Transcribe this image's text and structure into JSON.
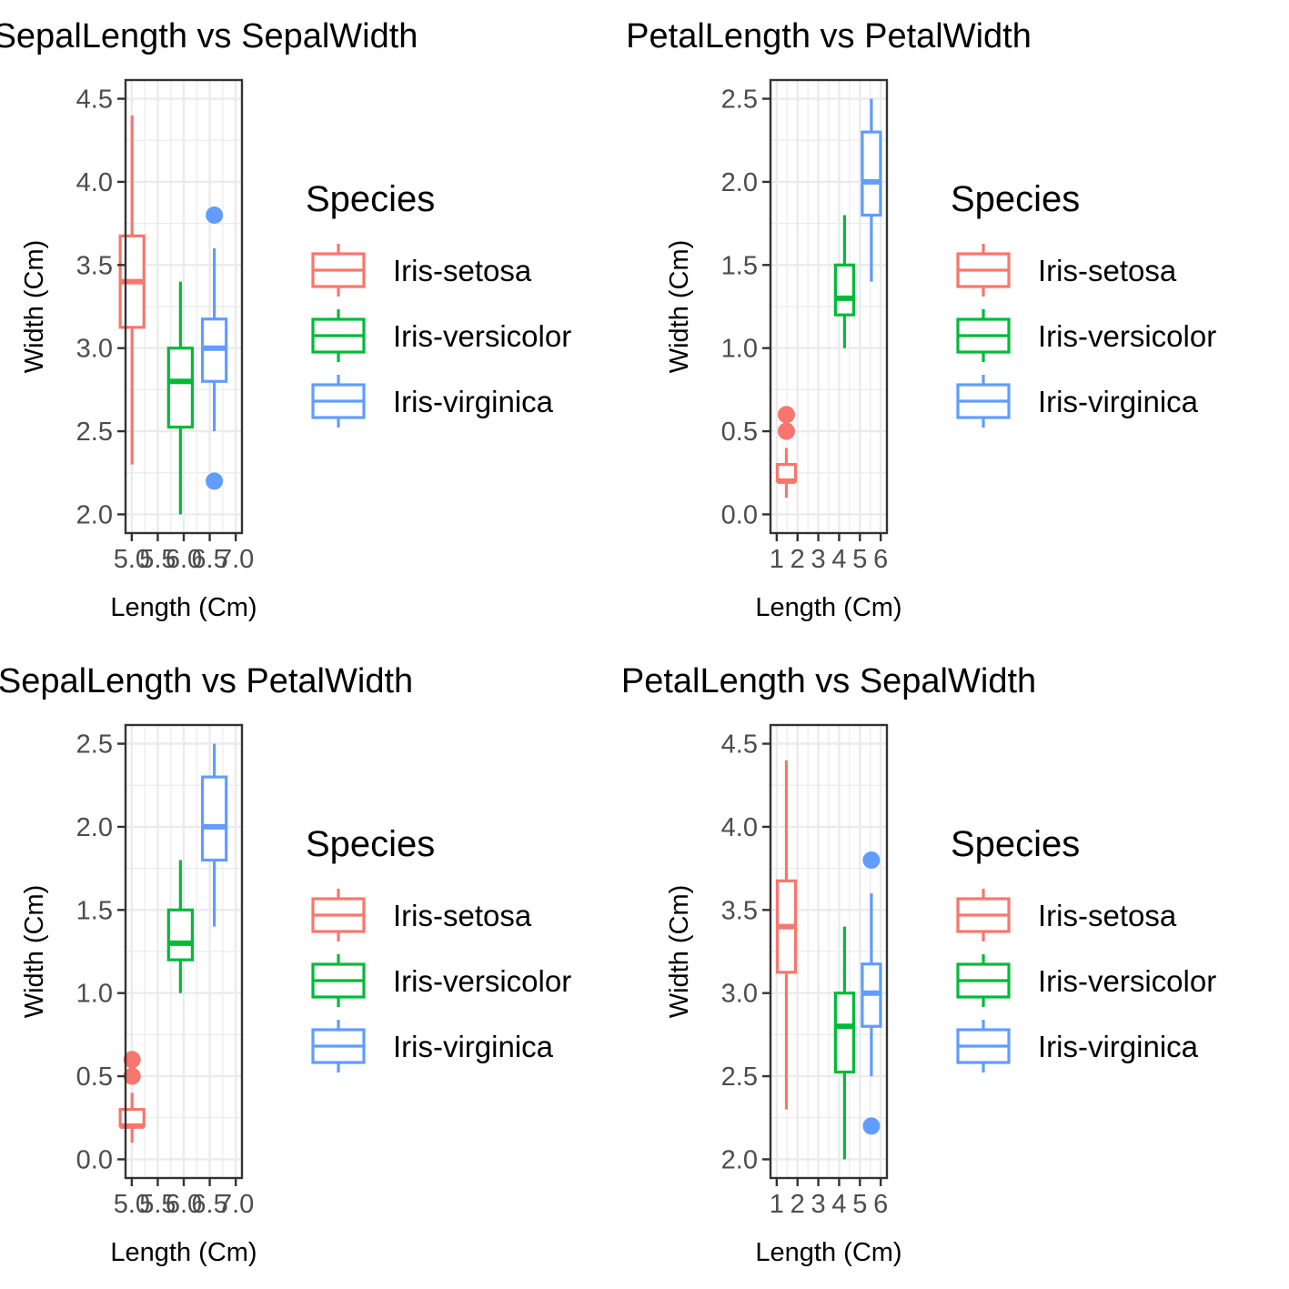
{
  "species": [
    {
      "name": "Iris-setosa",
      "color": "#F8766D"
    },
    {
      "name": "Iris-versicolor",
      "color": "#00BA38"
    },
    {
      "name": "Iris-virginica",
      "color": "#619CFF"
    }
  ],
  "chart_data": [
    {
      "type": "boxplot",
      "title": "SepalLength vs SepalWidth",
      "xlabel": "Length (Cm)",
      "ylabel": "Width (Cm)",
      "xlim": [
        5.0,
        7.0
      ],
      "ylim": [
        2.0,
        4.5
      ],
      "xticks": [
        {
          "v": 5.0,
          "label": "5.0"
        },
        {
          "v": 5.5,
          "label": "5.5"
        },
        {
          "v": 6.0,
          "label": "6.0"
        },
        {
          "v": 6.5,
          "label": "6.5"
        },
        {
          "v": 7.0,
          "label": "7.0"
        }
      ],
      "yticks": [
        {
          "v": 2.0,
          "label": "2.0"
        },
        {
          "v": 2.5,
          "label": "2.5"
        },
        {
          "v": 3.0,
          "label": "3.0"
        },
        {
          "v": 3.5,
          "label": "3.5"
        },
        {
          "v": 4.0,
          "label": "4.0"
        },
        {
          "v": 4.5,
          "label": "4.5"
        }
      ],
      "legend_title": "Species",
      "boxes": [
        {
          "species": "Iris-setosa",
          "center": 5.006,
          "whisker_low": 2.3,
          "q1": 3.125,
          "median": 3.4,
          "q3": 3.675,
          "whisker_high": 4.4,
          "outliers": []
        },
        {
          "species": "Iris-versicolor",
          "center": 5.936,
          "whisker_low": 2.0,
          "q1": 2.525,
          "median": 2.8,
          "q3": 3.0,
          "whisker_high": 3.4,
          "outliers": []
        },
        {
          "species": "Iris-virginica",
          "center": 6.588,
          "whisker_low": 2.5,
          "q1": 2.8,
          "median": 3.0,
          "q3": 3.175,
          "whisker_high": 3.6,
          "outliers": [
            3.8,
            2.2
          ]
        }
      ]
    },
    {
      "type": "boxplot",
      "title": "PetalLength vs PetalWidth",
      "xlabel": "Length (Cm)",
      "ylabel": "Width (Cm)",
      "xlim": [
        1,
        6
      ],
      "ylim": [
        0.0,
        2.5
      ],
      "xticks": [
        {
          "v": 1,
          "label": "1"
        },
        {
          "v": 2,
          "label": "2"
        },
        {
          "v": 3,
          "label": "3"
        },
        {
          "v": 4,
          "label": "4"
        },
        {
          "v": 5,
          "label": "5"
        },
        {
          "v": 6,
          "label": "6"
        }
      ],
      "yticks": [
        {
          "v": 0.0,
          "label": "0.0"
        },
        {
          "v": 0.5,
          "label": "0.5"
        },
        {
          "v": 1.0,
          "label": "1.0"
        },
        {
          "v": 1.5,
          "label": "1.5"
        },
        {
          "v": 2.0,
          "label": "2.0"
        },
        {
          "v": 2.5,
          "label": "2.5"
        }
      ],
      "legend_title": "Species",
      "boxes": [
        {
          "species": "Iris-setosa",
          "center": 1.464,
          "whisker_low": 0.1,
          "q1": 0.2,
          "median": 0.2,
          "q3": 0.3,
          "whisker_high": 0.4,
          "outliers": [
            0.5,
            0.6
          ]
        },
        {
          "species": "Iris-versicolor",
          "center": 4.26,
          "whisker_low": 1.0,
          "q1": 1.2,
          "median": 1.3,
          "q3": 1.5,
          "whisker_high": 1.8,
          "outliers": []
        },
        {
          "species": "Iris-virginica",
          "center": 5.552,
          "whisker_low": 1.4,
          "q1": 1.8,
          "median": 2.0,
          "q3": 2.3,
          "whisker_high": 2.5,
          "outliers": []
        }
      ]
    },
    {
      "type": "boxplot",
      "title": "SepalLength vs PetalWidth",
      "xlabel": "Length (Cm)",
      "ylabel": "Width (Cm)",
      "xlim": [
        5.0,
        7.0
      ],
      "ylim": [
        0.0,
        2.5
      ],
      "xticks": [
        {
          "v": 5.0,
          "label": "5.0"
        },
        {
          "v": 5.5,
          "label": "5.5"
        },
        {
          "v": 6.0,
          "label": "6.0"
        },
        {
          "v": 6.5,
          "label": "6.5"
        },
        {
          "v": 7.0,
          "label": "7.0"
        }
      ],
      "yticks": [
        {
          "v": 0.0,
          "label": "0.0"
        },
        {
          "v": 0.5,
          "label": "0.5"
        },
        {
          "v": 1.0,
          "label": "1.0"
        },
        {
          "v": 1.5,
          "label": "1.5"
        },
        {
          "v": 2.0,
          "label": "2.0"
        },
        {
          "v": 2.5,
          "label": "2.5"
        }
      ],
      "legend_title": "Species",
      "boxes": [
        {
          "species": "Iris-setosa",
          "center": 5.006,
          "whisker_low": 0.1,
          "q1": 0.2,
          "median": 0.2,
          "q3": 0.3,
          "whisker_high": 0.4,
          "outliers": [
            0.5,
            0.6
          ]
        },
        {
          "species": "Iris-versicolor",
          "center": 5.936,
          "whisker_low": 1.0,
          "q1": 1.2,
          "median": 1.3,
          "q3": 1.5,
          "whisker_high": 1.8,
          "outliers": []
        },
        {
          "species": "Iris-virginica",
          "center": 6.588,
          "whisker_low": 1.4,
          "q1": 1.8,
          "median": 2.0,
          "q3": 2.3,
          "whisker_high": 2.5,
          "outliers": []
        }
      ]
    },
    {
      "type": "boxplot",
      "title": "PetalLength vs SepalWidth",
      "xlabel": "Length (Cm)",
      "ylabel": "Width (Cm)",
      "xlim": [
        1,
        6
      ],
      "ylim": [
        2.0,
        4.5
      ],
      "xticks": [
        {
          "v": 1,
          "label": "1"
        },
        {
          "v": 2,
          "label": "2"
        },
        {
          "v": 3,
          "label": "3"
        },
        {
          "v": 4,
          "label": "4"
        },
        {
          "v": 5,
          "label": "5"
        },
        {
          "v": 6,
          "label": "6"
        }
      ],
      "yticks": [
        {
          "v": 2.0,
          "label": "2.0"
        },
        {
          "v": 2.5,
          "label": "2.5"
        },
        {
          "v": 3.0,
          "label": "3.0"
        },
        {
          "v": 3.5,
          "label": "3.5"
        },
        {
          "v": 4.0,
          "label": "4.0"
        },
        {
          "v": 4.5,
          "label": "4.5"
        }
      ],
      "legend_title": "Species",
      "boxes": [
        {
          "species": "Iris-setosa",
          "center": 1.464,
          "whisker_low": 2.3,
          "q1": 3.125,
          "median": 3.4,
          "q3": 3.675,
          "whisker_high": 4.4,
          "outliers": []
        },
        {
          "species": "Iris-versicolor",
          "center": 4.26,
          "whisker_low": 2.0,
          "q1": 2.525,
          "median": 2.8,
          "q3": 3.0,
          "whisker_high": 3.4,
          "outliers": []
        },
        {
          "species": "Iris-virginica",
          "center": 5.552,
          "whisker_low": 2.5,
          "q1": 2.8,
          "median": 3.0,
          "q3": 3.175,
          "whisker_high": 3.6,
          "outliers": [
            3.8,
            2.2
          ]
        }
      ]
    }
  ]
}
